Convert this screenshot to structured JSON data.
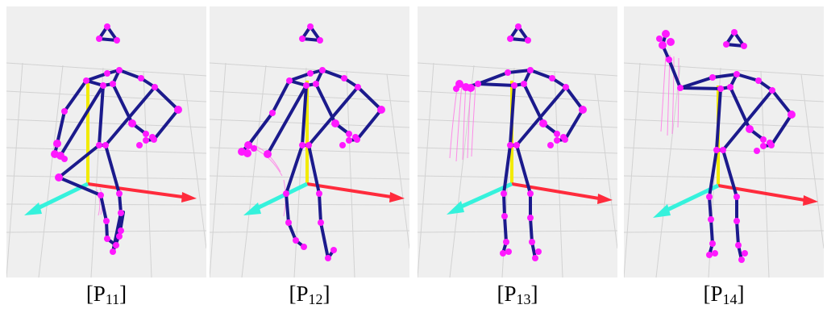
{
  "colors": {
    "background": "#ffffff",
    "panel_background": "#efefef",
    "skeleton_bone": "#1b1a8c",
    "skeleton_joint": "#ff19ff",
    "x_axis": "#ff2b3c",
    "y_axis": "#f2ea00",
    "z_axis": "#35f2dc",
    "trajectory": "#ff7ae6"
  },
  "panels": [
    {
      "label_open": "[P",
      "label_sub": "11",
      "label_close": "]",
      "pose": "hand-on-hip-left-arm-down"
    },
    {
      "label_open": "[P",
      "label_sub": "12",
      "label_close": "]",
      "pose": "hand-on-hip-left-arm-forward"
    },
    {
      "label_open": "[P",
      "label_sub": "13",
      "label_close": "]",
      "pose": "hand-on-hip-left-arm-raised-side"
    },
    {
      "label_open": "[P",
      "label_sub": "14",
      "label_close": "]",
      "pose": "hand-on-hip-left-arm-raised-high"
    }
  ]
}
